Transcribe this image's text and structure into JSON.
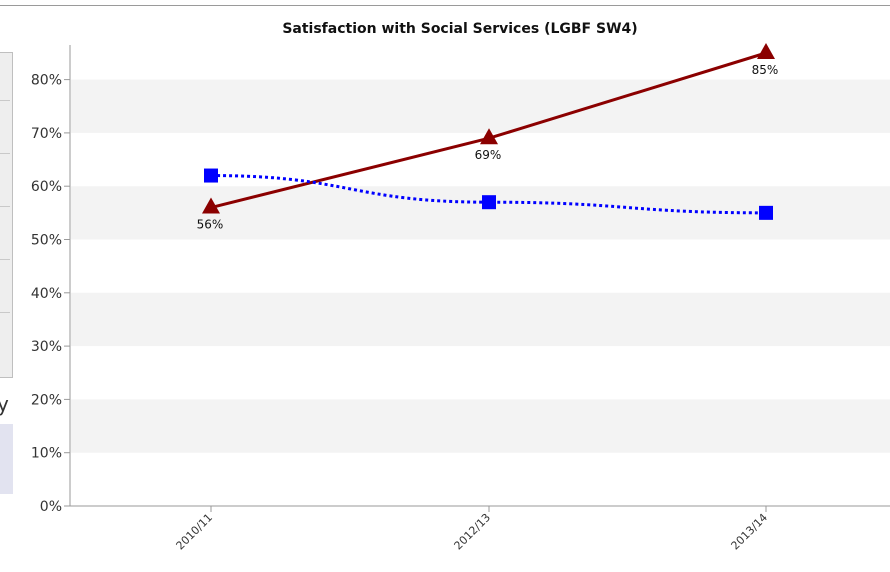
{
  "chart_data": {
    "type": "line",
    "title": "Satisfaction with Social Services (LGBF SW4)",
    "xlabel": "",
    "ylabel": "",
    "categories": [
      "2010/11",
      "2012/13",
      "2013/14"
    ],
    "y_ticks": [
      "0%",
      "10%",
      "20%",
      "30%",
      "40%",
      "50%",
      "60%",
      "70%",
      "80%"
    ],
    "ylim": [
      0,
      80
    ],
    "grid": "alternating horizontal bands",
    "legend": "none",
    "series": [
      {
        "values": [
          56,
          69,
          85
        ],
        "labels": [
          "56%",
          "69%",
          "85%"
        ],
        "color": "#8b0000",
        "marker": "triangle",
        "line_style": "solid"
      },
      {
        "values": [
          62,
          57,
          55
        ],
        "color": "#0000ff",
        "marker": "square",
        "line_style": "dotted"
      }
    ]
  },
  "cropped_glyph": "y"
}
